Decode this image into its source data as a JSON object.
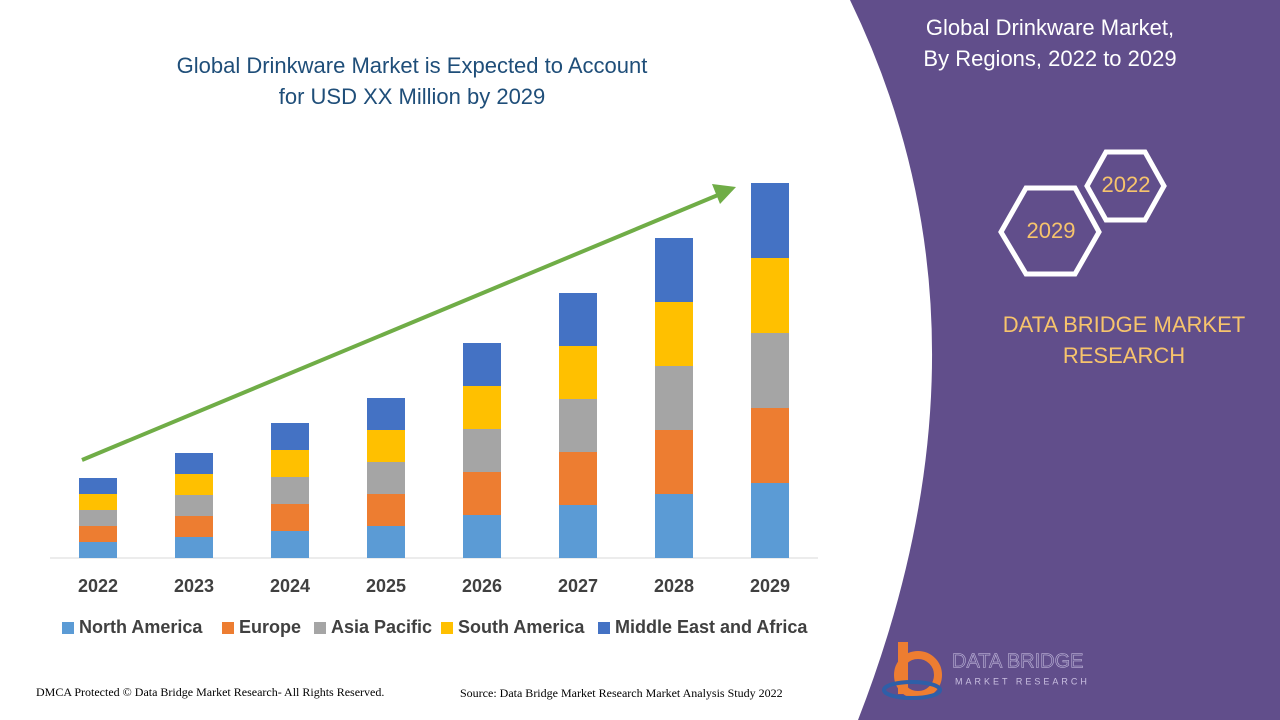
{
  "chart_data": {
    "type": "stacked-bar",
    "title": [
      "Global Drinkware Market is Expected to Account",
      "for USD XX Million by 2029"
    ],
    "categories": [
      "2022",
      "2023",
      "2024",
      "2025",
      "2026",
      "2027",
      "2028",
      "2029"
    ],
    "series": [
      {
        "name": "North America",
        "color": "#5b9bd5",
        "values": [
          16,
          21,
          27,
          32,
          43,
          53,
          64,
          75
        ]
      },
      {
        "name": "Europe",
        "color": "#ed7d31",
        "values": [
          16,
          21,
          27,
          32,
          43,
          53,
          64,
          75
        ]
      },
      {
        "name": "Asia Pacific",
        "color": "#a5a5a5",
        "values": [
          16,
          21,
          27,
          32,
          43,
          53,
          64,
          75
        ]
      },
      {
        "name": "South America",
        "color": "#ffc000",
        "values": [
          16,
          21,
          27,
          32,
          43,
          53,
          64,
          75
        ]
      },
      {
        "name": "Middle East and Africa",
        "color": "#4472c4",
        "values": [
          16,
          21,
          27,
          32,
          43,
          53,
          64,
          75
        ]
      }
    ],
    "ylim": [
      0,
      375
    ],
    "legend": "bottom",
    "trend_arrow_color": "#70ad47"
  },
  "panel": {
    "title": [
      "Global Drinkware Market,",
      "By Regions, 2022 to 2029"
    ],
    "hexagons": [
      "2022",
      "2029"
    ],
    "brand": [
      "DATA BRIDGE MARKET",
      "RESEARCH"
    ]
  },
  "logo": {
    "name": "DATA BRIDGE",
    "tagline": "MARKET RESEARCH"
  },
  "footer": {
    "copyright": "DMCA Protected © Data Bridge Market Research- All Rights Reserved.",
    "source": "Source: Data Bridge Market Research Market Analysis Study 2022"
  }
}
